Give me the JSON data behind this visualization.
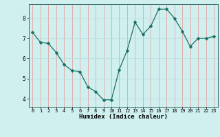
{
  "x": [
    0,
    1,
    2,
    3,
    4,
    5,
    6,
    7,
    8,
    9,
    10,
    11,
    12,
    13,
    14,
    15,
    16,
    17,
    18,
    19,
    20,
    21,
    22,
    23
  ],
  "y": [
    7.3,
    6.8,
    6.75,
    6.3,
    5.7,
    5.4,
    5.35,
    4.6,
    4.35,
    3.95,
    3.95,
    5.45,
    6.4,
    7.8,
    7.2,
    7.6,
    8.45,
    8.45,
    8.0,
    7.35,
    6.6,
    7.0,
    7.0,
    7.1
  ],
  "xlabel": "Humidex (Indice chaleur)",
  "line_color": "#1a6e63",
  "marker_size": 2.5,
  "bg_color": "#d0f0f0",
  "grid_color_v": "#e8a0a0",
  "grid_color_h": "#b8dede",
  "ylim": [
    3.6,
    8.7
  ],
  "xlim": [
    -0.5,
    23.5
  ],
  "yticks": [
    4,
    5,
    6,
    7,
    8
  ],
  "xticks": [
    0,
    1,
    2,
    3,
    4,
    5,
    6,
    7,
    8,
    9,
    10,
    11,
    12,
    13,
    14,
    15,
    16,
    17,
    18,
    19,
    20,
    21,
    22,
    23
  ]
}
